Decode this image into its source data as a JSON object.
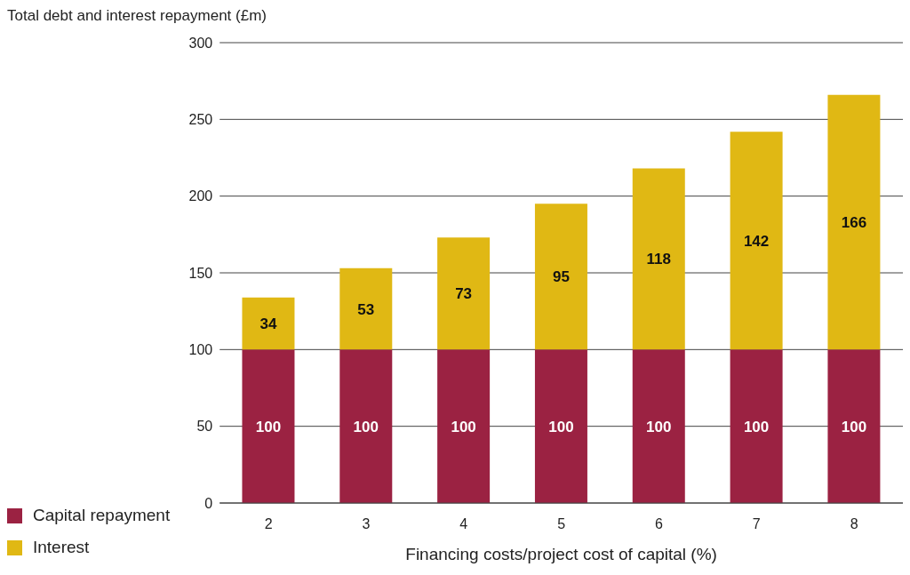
{
  "chart_data": {
    "type": "bar",
    "ylabel": "Total debt and interest repayment (£m)",
    "xlabel": "Financing costs/project cost of capital (%)",
    "categories": [
      "2",
      "3",
      "4",
      "5",
      "6",
      "7",
      "8"
    ],
    "series": [
      {
        "name": "Capital repayment",
        "color": "#9b2242",
        "values": [
          100,
          100,
          100,
          100,
          100,
          100,
          100
        ]
      },
      {
        "name": "Interest",
        "color": "#e0b814",
        "values": [
          34,
          53,
          73,
          95,
          118,
          142,
          166
        ]
      }
    ],
    "stacked": true,
    "ylim": [
      0,
      300
    ],
    "yticks": [
      0,
      50,
      100,
      150,
      200,
      250,
      300
    ],
    "grid": "y",
    "legend": "bottom left",
    "data_labels": true
  }
}
